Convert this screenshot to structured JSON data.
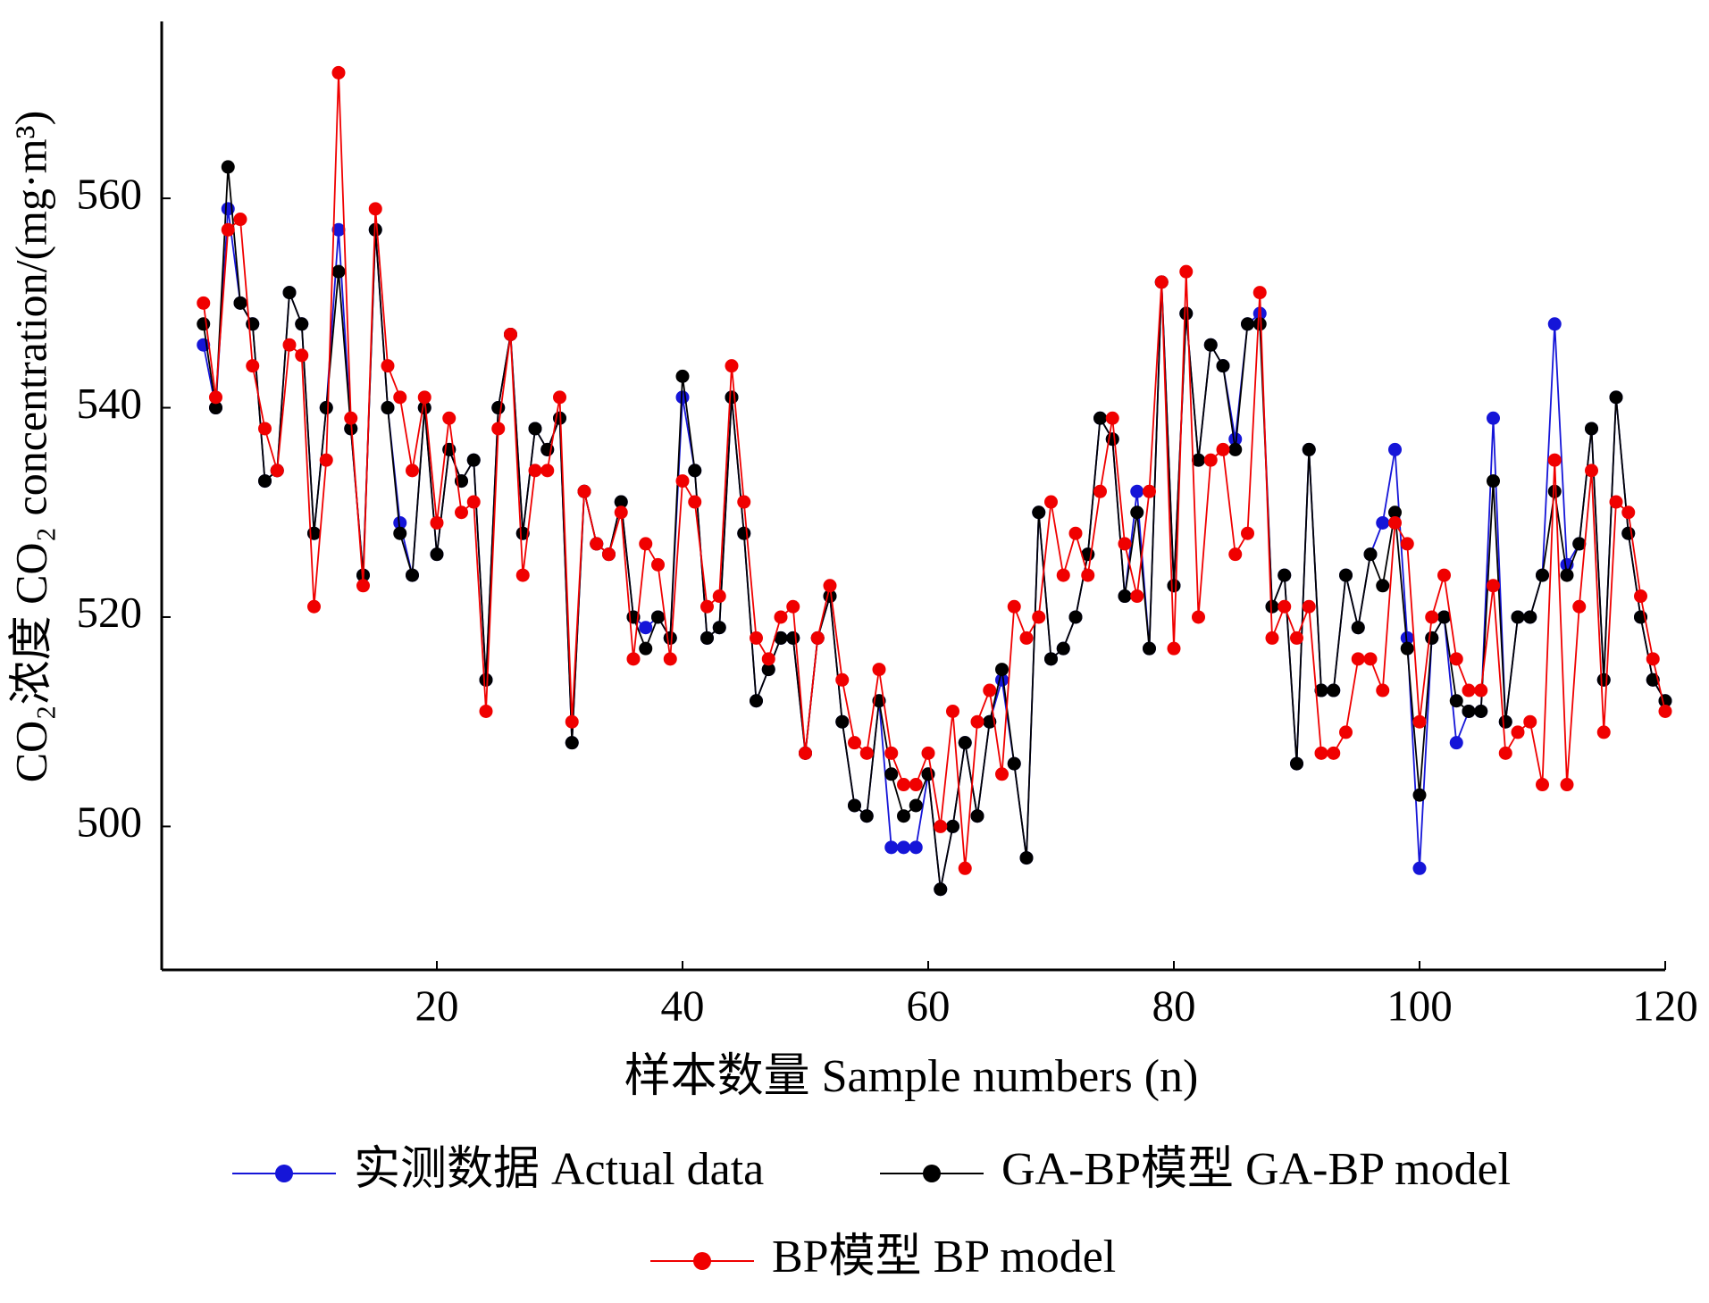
{
  "chart_data": {
    "type": "line",
    "xlabel": "样本数量  Sample numbers (n)",
    "ylabel": "CO₂浓度  CO₂ concentration/(mg·m³)",
    "x": [
      1,
      2,
      3,
      4,
      5,
      6,
      7,
      8,
      9,
      10,
      11,
      12,
      13,
      14,
      15,
      16,
      17,
      18,
      19,
      20,
      21,
      22,
      23,
      24,
      25,
      26,
      27,
      28,
      29,
      30,
      31,
      32,
      33,
      34,
      35,
      36,
      37,
      38,
      39,
      40,
      41,
      42,
      43,
      44,
      45,
      46,
      47,
      48,
      49,
      50,
      51,
      52,
      53,
      54,
      55,
      56,
      57,
      58,
      59,
      60,
      61,
      62,
      63,
      64,
      65,
      66,
      67,
      68,
      69,
      70,
      71,
      72,
      73,
      74,
      75,
      76,
      77,
      78,
      79,
      80,
      81,
      82,
      83,
      84,
      85,
      86,
      87,
      88,
      89,
      90,
      91,
      92,
      93,
      94,
      95,
      96,
      97,
      98,
      99,
      100,
      101,
      102,
      103,
      104,
      105,
      106,
      107,
      108,
      109,
      110,
      111,
      112,
      113,
      114,
      115,
      116,
      117,
      118,
      119,
      120
    ],
    "series": [
      {
        "name": "实测数据  Actual data",
        "color": "#1515d8",
        "values": [
          546,
          540,
          559,
          550,
          548,
          533,
          534,
          551,
          548,
          528,
          540,
          557,
          538,
          524,
          557,
          540,
          529,
          524,
          540,
          526,
          536,
          533,
          535,
          514,
          540,
          547,
          528,
          538,
          536,
          539,
          508,
          532,
          527,
          526,
          531,
          520,
          519,
          520,
          518,
          541,
          534,
          518,
          519,
          541,
          528,
          512,
          515,
          518,
          518,
          507,
          518,
          522,
          510,
          502,
          501,
          512,
          498,
          498,
          498,
          505,
          494,
          500,
          508,
          501,
          510,
          514,
          506,
          497,
          530,
          516,
          517,
          520,
          526,
          539,
          537,
          522,
          532,
          517,
          552,
          523,
          549,
          535,
          546,
          544,
          537,
          548,
          549,
          521,
          524,
          506,
          536,
          513,
          513,
          524,
          519,
          526,
          529,
          536,
          518,
          496,
          518,
          520,
          508,
          511,
          511,
          539,
          510,
          520,
          520,
          524,
          548,
          525,
          527,
          538,
          514,
          541,
          528,
          520,
          514,
          512
        ]
      },
      {
        "name": "GA-BP模型  GA-BP model",
        "color": "#000000",
        "values": [
          548,
          540,
          563,
          550,
          548,
          533,
          534,
          551,
          548,
          528,
          540,
          553,
          538,
          524,
          557,
          540,
          528,
          524,
          540,
          526,
          536,
          533,
          535,
          514,
          540,
          547,
          528,
          538,
          536,
          539,
          508,
          532,
          527,
          526,
          531,
          520,
          517,
          520,
          518,
          543,
          534,
          518,
          519,
          541,
          528,
          512,
          515,
          518,
          518,
          507,
          518,
          522,
          510,
          502,
          501,
          512,
          505,
          501,
          502,
          505,
          494,
          500,
          508,
          501,
          510,
          515,
          506,
          497,
          530,
          516,
          517,
          520,
          526,
          539,
          537,
          522,
          530,
          517,
          552,
          523,
          549,
          535,
          546,
          544,
          536,
          548,
          548,
          521,
          524,
          506,
          536,
          513,
          513,
          524,
          519,
          526,
          523,
          530,
          517,
          503,
          518,
          520,
          512,
          511,
          511,
          533,
          510,
          520,
          520,
          524,
          532,
          524,
          527,
          538,
          514,
          541,
          528,
          520,
          514,
          512
        ]
      },
      {
        "name": "BP模型  BP model",
        "color": "#f00000",
        "values": [
          550,
          541,
          557,
          558,
          544,
          538,
          534,
          546,
          545,
          521,
          535,
          572,
          539,
          523,
          559,
          544,
          541,
          534,
          541,
          529,
          539,
          530,
          531,
          511,
          538,
          547,
          524,
          534,
          534,
          541,
          510,
          532,
          527,
          526,
          530,
          516,
          527,
          525,
          516,
          533,
          531,
          521,
          522,
          544,
          531,
          518,
          516,
          520,
          521,
          507,
          518,
          523,
          514,
          508,
          507,
          515,
          507,
          504,
          504,
          507,
          500,
          511,
          496,
          510,
          513,
          505,
          521,
          518,
          520,
          531,
          524,
          528,
          524,
          532,
          539,
          527,
          522,
          532,
          552,
          517,
          553,
          520,
          535,
          536,
          526,
          528,
          551,
          518,
          521,
          518,
          521,
          507,
          507,
          509,
          516,
          516,
          513,
          529,
          527,
          510,
          520,
          524,
          516,
          513,
          513,
          523,
          507,
          509,
          510,
          504,
          535,
          504,
          521,
          534,
          509,
          531,
          530,
          522,
          516,
          511
        ]
      }
    ],
    "xlim": [
      -2.4,
      120
    ],
    "xticks": [
      20,
      40,
      60,
      80,
      100,
      120
    ],
    "ylim": [
      486.3,
      576.9
    ],
    "yticks": [
      500,
      520,
      540,
      560
    ]
  }
}
